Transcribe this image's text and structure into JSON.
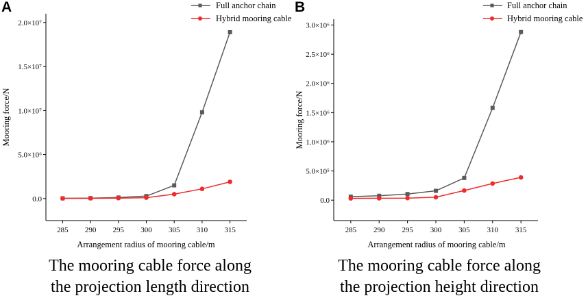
{
  "chart_data": [
    {
      "panel": "A",
      "type": "line",
      "title": "",
      "xlabel": "Arrangement radius of mooring cable/m",
      "ylabel": "Mooring force/N",
      "categories": [
        285,
        290,
        295,
        300,
        305,
        310,
        315
      ],
      "xlim": [
        282,
        318
      ],
      "ylim": [
        -2500000,
        21000000
      ],
      "x_ticks": [
        "285",
        "290",
        "295",
        "300",
        "305",
        "310",
        "315"
      ],
      "y_ticks": [
        {
          "value": 0,
          "label": "0.0"
        },
        {
          "value": 5000000,
          "label": "5.0×10⁶"
        },
        {
          "value": 10000000,
          "label": "1.0×10⁷"
        },
        {
          "value": 15000000,
          "label": "1.5×10⁷"
        },
        {
          "value": 20000000,
          "label": "2.0×10⁷"
        }
      ],
      "series": [
        {
          "name": "Full anchor  chain",
          "color": "#5a5a5a",
          "marker": "square",
          "values": [
            30000,
            50000,
            120000,
            280000,
            1500000,
            9800000,
            18900000
          ]
        },
        {
          "name": "Hybrid mooring cable",
          "color": "#ee2a2a",
          "marker": "circle",
          "values": [
            20000,
            30000,
            50000,
            100000,
            500000,
            1100000,
            1900000
          ]
        }
      ],
      "legend_position": "top-right",
      "caption_lines": [
        "The mooring cable force along",
        "the projection length direction"
      ]
    },
    {
      "panel": "B",
      "type": "line",
      "title": "",
      "xlabel": "Arrangement radius of mooring cable/m",
      "ylabel": "Mooring  force/N",
      "categories": [
        285,
        290,
        295,
        300,
        305,
        310,
        315
      ],
      "xlim": [
        282,
        318
      ],
      "ylim": [
        -350000,
        3100000
      ],
      "x_ticks": [
        "285",
        "290",
        "295",
        "300",
        "305",
        "310",
        "315"
      ],
      "y_ticks": [
        {
          "value": 0,
          "label": "0.0"
        },
        {
          "value": 500000,
          "label": "5.0×10⁵"
        },
        {
          "value": 1000000,
          "label": "1.0×10⁶"
        },
        {
          "value": 1500000,
          "label": "1.5×10⁶"
        },
        {
          "value": 2000000,
          "label": "2.0×10⁶"
        },
        {
          "value": 2500000,
          "label": "2.5×10⁶"
        },
        {
          "value": 3000000,
          "label": "3.0×10⁶"
        }
      ],
      "series": [
        {
          "name": "Full anchor  chain",
          "color": "#5a5a5a",
          "marker": "square",
          "values": [
            60000,
            75000,
            105000,
            160000,
            380000,
            1580000,
            2880000
          ]
        },
        {
          "name": "Hybrid mooring cable",
          "color": "#ee2a2a",
          "marker": "circle",
          "values": [
            30000,
            32000,
            35000,
            50000,
            165000,
            285000,
            390000
          ]
        }
      ],
      "legend_position": "top-right",
      "caption_lines": [
        "The mooring cable force along",
        "the projection height direction"
      ]
    }
  ]
}
